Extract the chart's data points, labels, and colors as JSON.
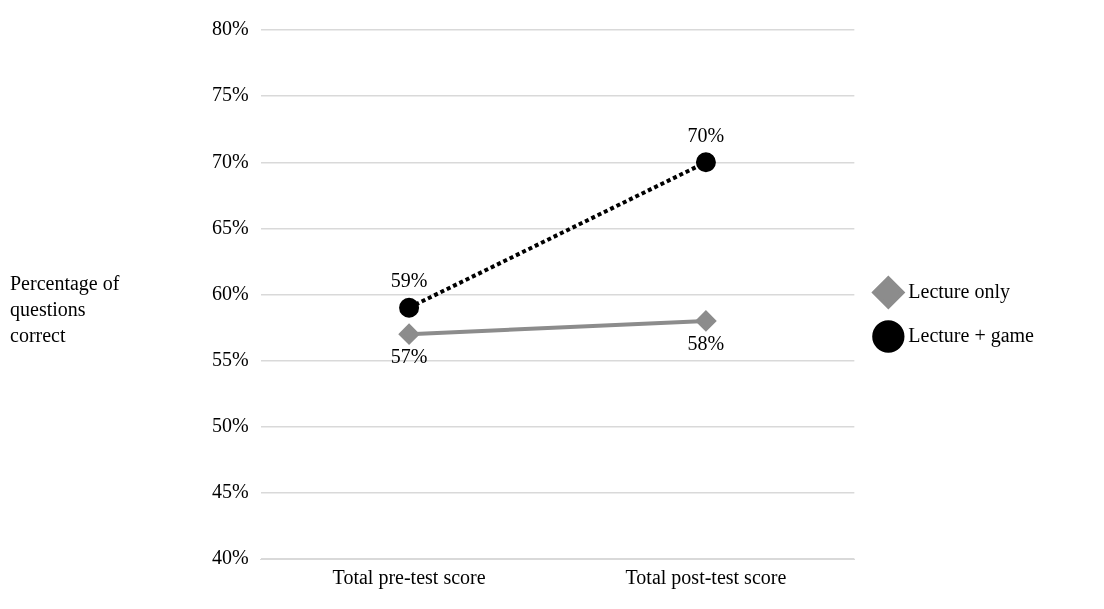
{
  "chart_data": {
    "type": "line",
    "ylabel": "Percentage of questions correct",
    "categories": [
      "Total pre-test score",
      "Total post-test score"
    ],
    "series": [
      {
        "name": "Lecture only",
        "color": "#8c8c8c",
        "values": [
          57,
          58
        ],
        "value_labels": [
          "57%",
          "58%"
        ],
        "marker": "diamond",
        "line_style": "solid"
      },
      {
        "name": "Lecture + game",
        "color": "#000000",
        "values": [
          59,
          70
        ],
        "value_labels": [
          "59%",
          "70%"
        ],
        "marker": "circle",
        "line_style": "dotted"
      }
    ],
    "ylim": [
      40,
      80
    ],
    "yticks": [
      {
        "value": 40,
        "label": "40%"
      },
      {
        "value": 45,
        "label": "45%"
      },
      {
        "value": 50,
        "label": "50%"
      },
      {
        "value": 55,
        "label": "55%"
      },
      {
        "value": 60,
        "label": "60%"
      },
      {
        "value": 65,
        "label": "65%"
      },
      {
        "value": 70,
        "label": "70%"
      },
      {
        "value": 75,
        "label": "75%"
      },
      {
        "value": 80,
        "label": "80%"
      }
    ],
    "grid": "y",
    "legend": "right"
  }
}
